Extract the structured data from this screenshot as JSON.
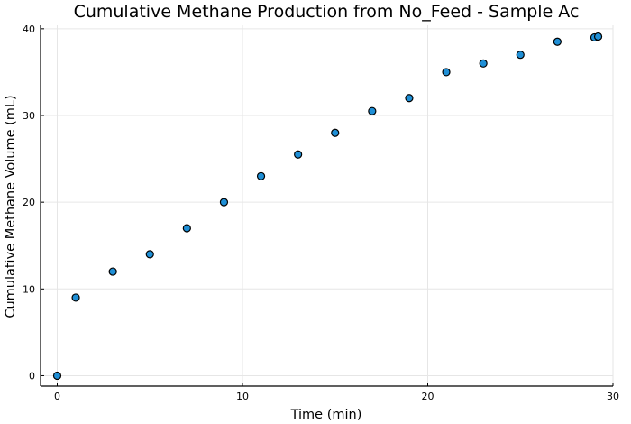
{
  "chart_data": {
    "type": "scatter",
    "title": "Cumulative Methane Production from No_Feed - Sample Ac",
    "xlabel": "Time (min)",
    "ylabel": "Cumulative Methane Volume (mL)",
    "xlim": [
      -0.9,
      30
    ],
    "ylim": [
      -1.2,
      40.4
    ],
    "xticks": [
      0,
      10,
      20,
      30
    ],
    "yticks": [
      0,
      10,
      20,
      30,
      40
    ],
    "grid": true,
    "legend": "none",
    "marker_color": "#1f8fd6",
    "series": [
      {
        "x": [
          0,
          1,
          3,
          5,
          7,
          9,
          11,
          13,
          15,
          17,
          19,
          21,
          23,
          25,
          27,
          29,
          29.2
        ],
        "y": [
          0,
          9,
          12,
          14,
          17,
          20,
          23,
          25.5,
          28,
          30.5,
          32,
          35,
          36,
          37,
          38.5,
          39,
          39.1
        ]
      }
    ]
  }
}
